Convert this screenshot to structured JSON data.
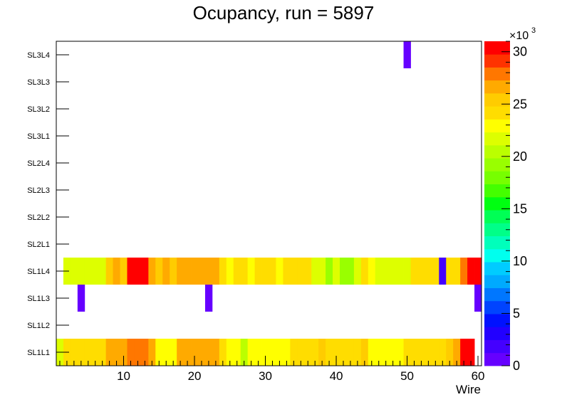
{
  "chart_data": {
    "type": "heatmap",
    "title": "Ocupancy, run = 5897",
    "xlabel": "Wire",
    "ylabel": "",
    "xlim": [
      0.5,
      60.5
    ],
    "x_ticks": [
      10,
      20,
      30,
      40,
      50,
      60
    ],
    "y_categories": [
      "SL1L1",
      "SL1L2",
      "SL1L3",
      "SL1L4",
      "SL2L1",
      "SL2L2",
      "SL2L3",
      "SL2L4",
      "SL3L1",
      "SL3L2",
      "SL3L3",
      "SL3L4"
    ],
    "z_range": [
      0,
      31000
    ],
    "z_ticks": [
      0,
      5,
      10,
      15,
      20,
      25,
      30
    ],
    "z_multiplier": "×10",
    "z_multiplier_exp": "3",
    "palette": [
      "#6600ff",
      "#4400ff",
      "#2200ff",
      "#0011ff",
      "#0044ff",
      "#0077ff",
      "#00aaff",
      "#00ccff",
      "#00ffee",
      "#00ffbb",
      "#00ff88",
      "#00ff55",
      "#00ff11",
      "#44ff00",
      "#77ff00",
      "#99ff00",
      "#bbff00",
      "#ddff00",
      "#ffff00",
      "#ffdd00",
      "#ffcc00",
      "#ffaa00",
      "#ff7700",
      "#ff3300",
      "#ff0000"
    ],
    "rows": [
      {
        "layer": "SL1L1",
        "values": [
          21200,
          24600,
          24600,
          23600,
          23600,
          24600,
          24600,
          27000,
          27000,
          27000,
          28200,
          28200,
          28200,
          26400,
          23000,
          22500,
          22500,
          27000,
          27000,
          27000,
          27000,
          27000,
          27000,
          24500,
          22600,
          22600,
          21000,
          22600,
          22600,
          23000,
          23000,
          23000,
          23000,
          24200,
          24200,
          24200,
          24200,
          25000,
          23600,
          23600,
          23600,
          23600,
          23600,
          25000,
          23000,
          23000,
          23000,
          23000,
          23000,
          24200,
          24200,
          24200,
          24200,
          24200,
          24200,
          25800,
          27200,
          29800,
          29800,
          0
        ]
      },
      {
        "layer": "SL1L2",
        "values": []
      },
      {
        "layer": "SL1L3",
        "values": [
          0,
          0,
          0,
          600,
          0,
          0,
          0,
          0,
          0,
          0,
          0,
          0,
          0,
          0,
          0,
          0,
          0,
          0,
          0,
          0,
          0,
          600,
          0,
          0,
          0,
          0,
          0,
          0,
          0,
          0,
          0,
          0,
          0,
          0,
          0,
          0,
          0,
          0,
          0,
          0,
          0,
          0,
          0,
          0,
          0,
          0,
          0,
          0,
          0,
          0,
          0,
          0,
          0,
          0,
          0,
          0,
          0,
          0,
          0,
          700
        ]
      },
      {
        "layer": "SL1L4",
        "values": [
          0,
          21500,
          21500,
          21500,
          21500,
          21500,
          21500,
          25800,
          27200,
          25800,
          29800,
          29800,
          29800,
          27200,
          25800,
          27200,
          25800,
          27000,
          27000,
          27000,
          27000,
          27000,
          27000,
          24200,
          23000,
          24200,
          24200,
          23000,
          24600,
          23600,
          24600,
          22600,
          24200,
          24200,
          24600,
          24600,
          21500,
          21500,
          19800,
          21500,
          19800,
          19800,
          21500,
          23600,
          22600,
          21500,
          21500,
          21500,
          21500,
          21500,
          23600,
          23600,
          23600,
          23600,
          1500,
          24600,
          24600,
          28000,
          29800,
          29800
        ]
      },
      {
        "layer": "SL2L1",
        "values": []
      },
      {
        "layer": "SL2L2",
        "values": []
      },
      {
        "layer": "SL2L3",
        "values": []
      },
      {
        "layer": "SL2L4",
        "values": []
      },
      {
        "layer": "SL3L1",
        "values": []
      },
      {
        "layer": "SL3L2",
        "values": []
      },
      {
        "layer": "SL3L3",
        "values": []
      },
      {
        "layer": "SL3L4",
        "values": [
          0,
          0,
          0,
          0,
          0,
          0,
          0,
          0,
          0,
          0,
          0,
          0,
          0,
          0,
          0,
          0,
          0,
          0,
          0,
          0,
          0,
          0,
          0,
          0,
          0,
          0,
          0,
          0,
          0,
          0,
          0,
          0,
          0,
          0,
          0,
          0,
          0,
          0,
          0,
          0,
          0,
          0,
          0,
          0,
          0,
          0,
          0,
          0,
          0,
          700
        ]
      }
    ],
    "grid": false,
    "legend": "color bar right"
  }
}
